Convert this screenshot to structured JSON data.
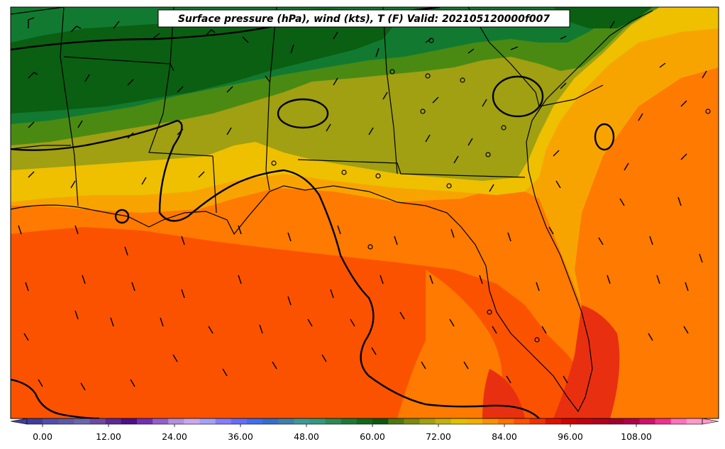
{
  "title": "Surface pressure (hPa), wind (kts), T (F) Valid: 202105120000f007",
  "colorbar": {
    "ticks": [
      "0.00",
      "12.00",
      "24.00",
      "36.00",
      "48.00",
      "60.00",
      "72.00",
      "84.00",
      "96.00",
      "108.00"
    ],
    "colors": [
      "#3e3ea0",
      "#4f4fb0",
      "#5a5aa8",
      "#6666b4",
      "#6b4aa0",
      "#5a2a9a",
      "#4b0f8f",
      "#7030b8",
      "#9060d0",
      "#b090e0",
      "#c8a8f0",
      "#a0a0ff",
      "#7f7fff",
      "#5f6fff",
      "#3f6ff0",
      "#3070d0",
      "#3a80b0",
      "#3a9a9a",
      "#2f9a80",
      "#2a8a5a",
      "#1a7a3a",
      "#0f6a1a",
      "#0a5a10",
      "#4a7a10",
      "#7a8a10",
      "#a0a010",
      "#c0b010",
      "#e0c000",
      "#f0b000",
      "#f89000",
      "#ff7000",
      "#ff5000",
      "#f03000",
      "#e01000",
      "#d00000",
      "#c00010",
      "#b00020",
      "#a00030",
      "#b00050",
      "#d01070",
      "#f03090",
      "#ff70c0",
      "#ff99cc"
    ]
  },
  "map_legend": {
    "fill_palette": {
      "dark_green": "#0a5f12",
      "green": "#117a30",
      "olive_green": "#4a8a12",
      "olive": "#a0a012",
      "yellow": "#eec000",
      "amber": "#f8a400",
      "orange": "#ff7a00",
      "red_orange": "#fb5200",
      "red": "#e83010"
    },
    "line_color": "#000000"
  }
}
